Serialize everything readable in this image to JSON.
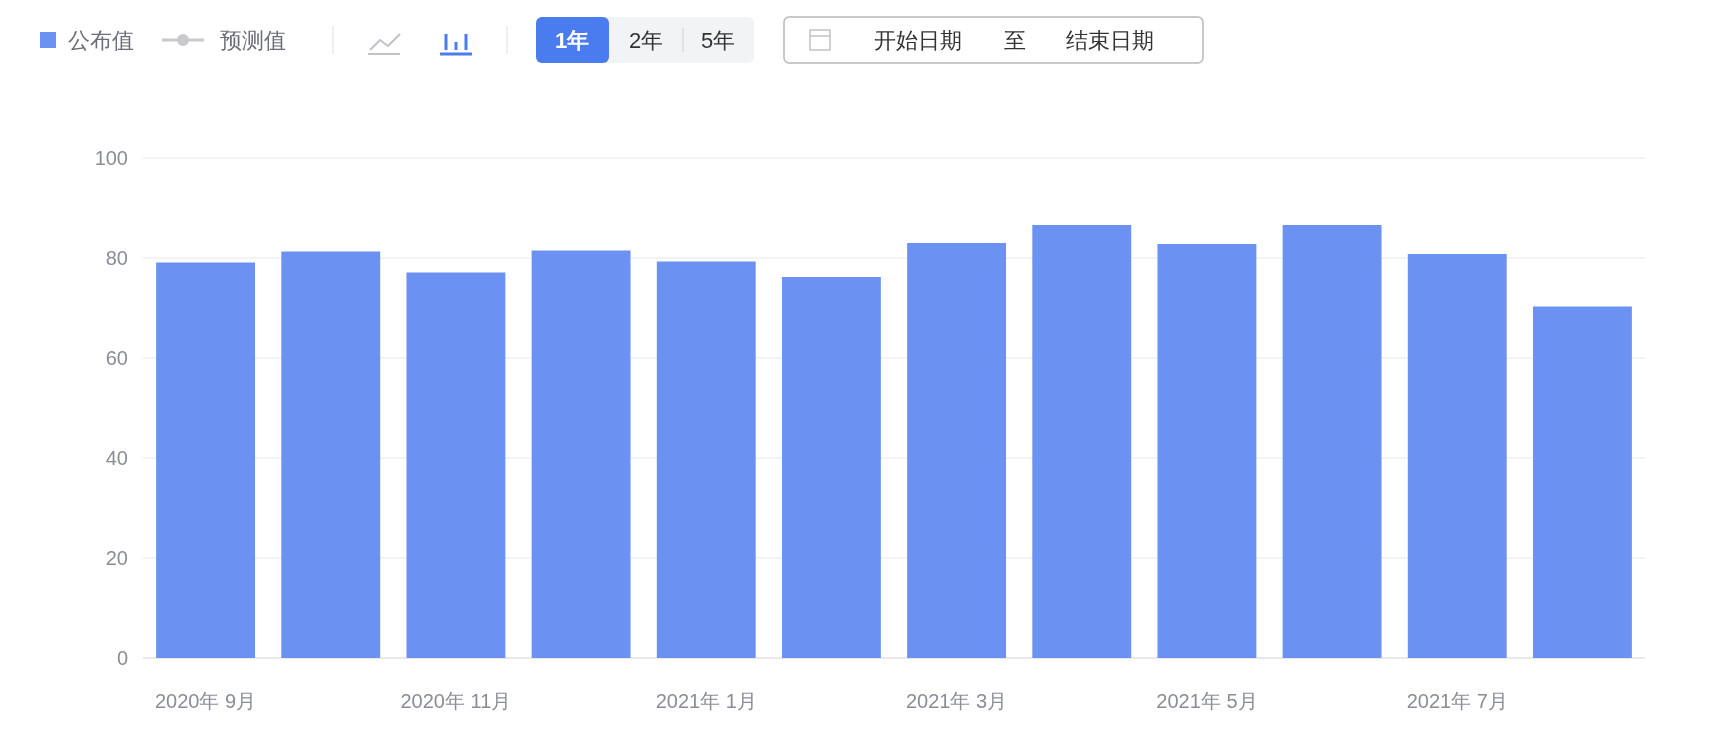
{
  "chart_data": {
    "type": "bar",
    "categories": [
      "2020年 9月",
      null,
      "2020年 11月",
      null,
      "2021年 1月",
      null,
      "2021年 3月",
      null,
      "2021年 5月",
      null,
      "2021年 7月",
      null
    ],
    "series": [
      {
        "name": "公布值",
        "color": "#6b91f2",
        "values": [
          79.1,
          81.3,
          77.1,
          81.5,
          79.3,
          76.2,
          83.0,
          86.6,
          82.8,
          86.6,
          80.8,
          70.3
        ]
      },
      {
        "name": "预测值",
        "type": "line",
        "color": "#c8c9cc",
        "values": [
          null,
          null,
          null,
          null,
          null,
          null,
          null,
          null,
          null,
          null,
          null,
          null
        ]
      }
    ],
    "ylim": [
      0,
      100
    ],
    "yticks": [
      0,
      20,
      40,
      60,
      80,
      100
    ],
    "grid": "y",
    "legend": "top left",
    "marker": "circle",
    "annotations": [
      "1年",
      "2年",
      "5年",
      "开始日期",
      "至",
      "结束日期"
    ]
  }
}
